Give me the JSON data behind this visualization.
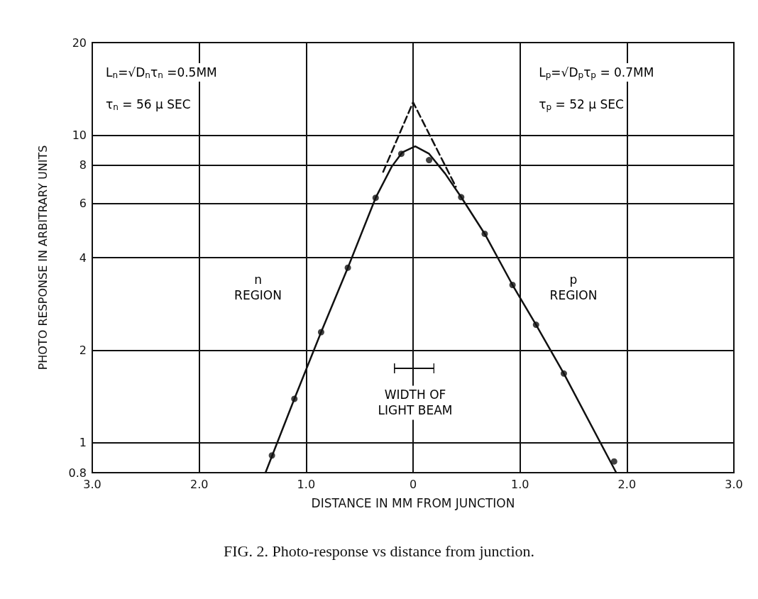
{
  "chart_data": {
    "type": "scatter",
    "xlabel": "DISTANCE IN MM FROM JUNCTION",
    "ylabel": "PHOTO RESPONSE IN ARBITRARY UNITS",
    "annotations": [
      "L$_{n}$=√D$_{n}$τ$_{n}$ =0.5MM",
      "τ$_{n}$ = 56 μ SEC",
      "L$_{p}$=√D$_{p}$τ$_{p}$ = 0.7MM",
      "τ$_{p}$ = 52 μ SEC",
      "n\nREGION",
      "p\nREGION",
      "WIDTH OF\nLIGHT BEAM",
      "FIG. 2. Photo-response vs distance from junction."
    ],
    "series": [
      {
        "color": "#111111",
        "marker": "circle",
        "x": [
          -1.32,
          -1.11,
          -0.86,
          -0.61,
          -0.35,
          -0.11,
          0.15,
          0.45,
          0.67,
          0.93,
          1.15,
          1.41,
          1.88
        ],
        "values": [
          0.91,
          1.39,
          2.29,
          3.71,
          6.26,
          8.7,
          8.3,
          6.29,
          4.78,
          3.26,
          2.42,
          1.68,
          0.87
        ]
      },
      {
        "type": "line",
        "color": "#111111",
        "marker": "none",
        "line_style": "solid",
        "x": [
          -1.38,
          -1.11,
          -0.86,
          -0.61,
          -0.35,
          -0.2,
          -0.1,
          0.02,
          0.15,
          0.3,
          0.45,
          0.67,
          0.93,
          1.15,
          1.41,
          1.9
        ],
        "values": [
          0.8,
          1.39,
          2.29,
          3.71,
          6.26,
          7.9,
          8.8,
          9.2,
          8.7,
          7.5,
          6.29,
          4.78,
          3.26,
          2.42,
          1.68,
          0.8
        ]
      },
      {
        "type": "line",
        "color": "#111111",
        "marker": "none",
        "line_style": "dashed",
        "x": [
          -0.28,
          0,
          0.4
        ],
        "values": [
          7.6,
          12.8,
          6.8
        ]
      }
    ],
    "xlim": [
      -3,
      3
    ],
    "xticks": [
      {
        "value": -3,
        "label": "3.0"
      },
      {
        "value": -2,
        "label": "2.0"
      },
      {
        "value": -1,
        "label": "1.0"
      },
      0,
      {
        "value": 1,
        "label": "1.0"
      },
      {
        "value": 2,
        "label": "2.0"
      },
      {
        "value": 3,
        "label": "3.0"
      }
    ],
    "ylim": [
      0.8,
      20
    ],
    "yticks": [
      0.8,
      1,
      2,
      4,
      6,
      8,
      10,
      20
    ],
    "log": "y",
    "grid": true,
    "legend": false
  }
}
